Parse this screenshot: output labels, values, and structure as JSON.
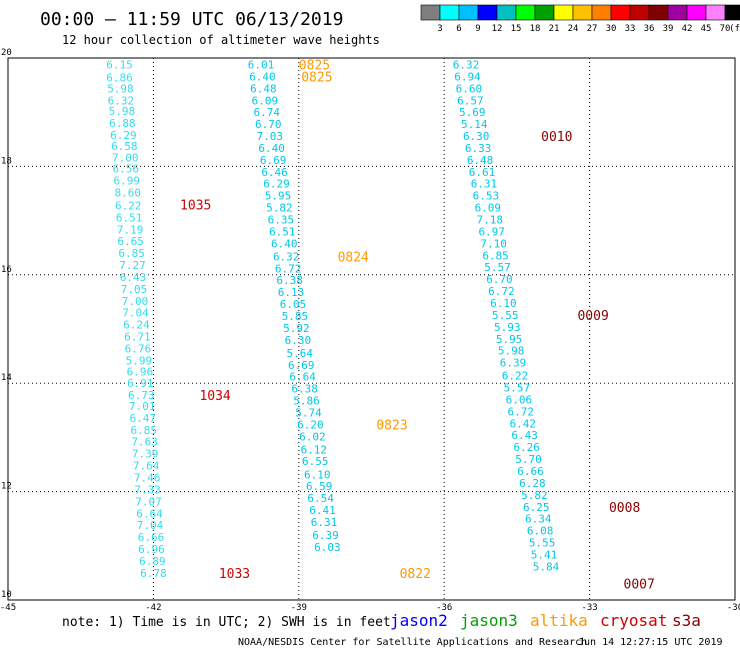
{
  "title": "00:00 – 11:59 UTC 06/13/2019",
  "subtitle": "12 hour collection of altimeter wave heights",
  "color_scale": {
    "colors": [
      "#7f7f7f",
      "#00ffff",
      "#00bfff",
      "#0000ff",
      "#00c0c0",
      "#00ff00",
      "#00a000",
      "#ffff00",
      "#ffc000",
      "#ff8000",
      "#ff0000",
      "#c00000",
      "#800000",
      "#a000a0",
      "#ff00ff",
      "#ff80ff",
      "#000000"
    ],
    "labels": [
      "3",
      "6",
      "9",
      "12",
      "15",
      "18",
      "21",
      "24",
      "27",
      "30",
      "33",
      "36",
      "39",
      "42",
      "45",
      "70",
      "(ft)"
    ]
  },
  "map": {
    "lon_range": [
      -45,
      -30
    ],
    "lat_range": [
      10,
      20
    ],
    "lon_ticks": [
      "-45",
      "-42",
      "-39",
      "-36",
      "-33",
      "-30"
    ],
    "lat_ticks": [
      "20",
      "18",
      "16",
      "14",
      "12",
      "10"
    ],
    "grid": true
  },
  "satellite_colors": {
    "jason2": "#0000ff",
    "jason3": "#00a000",
    "altika": "#ff9900",
    "cryosat": "#cc0000",
    "s3a": "#8b0000",
    "cyan": "#00c8e8",
    "light": "#33ddee"
  },
  "tracks": [
    {
      "color_key": "light",
      "points": [
        [
          -42.7,
          19.88,
          "6.15"
        ],
        [
          -42.7,
          19.64,
          "6.86"
        ],
        [
          -42.68,
          19.44,
          "5.98"
        ],
        [
          -42.67,
          19.22,
          "6.32"
        ],
        [
          -42.65,
          19.02,
          "5.98"
        ],
        [
          -42.64,
          18.8,
          "6.88"
        ],
        [
          -42.62,
          18.58,
          "6.29"
        ],
        [
          -42.6,
          18.38,
          "6.58"
        ],
        [
          -42.58,
          18.16,
          "7.00"
        ],
        [
          -42.57,
          17.96,
          "6.56"
        ],
        [
          -42.55,
          17.74,
          "6.99"
        ],
        [
          -42.53,
          17.52,
          "8.60"
        ],
        [
          -42.52,
          17.28,
          "6.22"
        ],
        [
          -42.5,
          17.06,
          "6.51"
        ],
        [
          -42.48,
          16.84,
          "7.19"
        ],
        [
          -42.47,
          16.62,
          "6.65"
        ],
        [
          -42.45,
          16.4,
          "6.85"
        ],
        [
          -42.43,
          16.18,
          "7.27"
        ],
        [
          -42.42,
          15.96,
          "6.43"
        ],
        [
          -42.4,
          15.74,
          "7.05"
        ],
        [
          -42.38,
          15.52,
          "7.00"
        ],
        [
          -42.37,
          15.3,
          "7.04"
        ],
        [
          -42.35,
          15.08,
          "6.24"
        ],
        [
          -42.33,
          14.86,
          "6.71"
        ],
        [
          -42.32,
          14.64,
          "6.76"
        ],
        [
          -42.3,
          14.42,
          "5.99"
        ],
        [
          -42.28,
          14.22,
          "6.96"
        ],
        [
          -42.27,
          14.0,
          "6.91"
        ],
        [
          -42.25,
          13.78,
          "6.73"
        ],
        [
          -42.23,
          13.58,
          "7.01"
        ],
        [
          -42.22,
          13.36,
          "6.47"
        ],
        [
          -42.2,
          13.14,
          "6.85"
        ],
        [
          -42.18,
          12.92,
          "7.63"
        ],
        [
          -42.17,
          12.7,
          "7.39"
        ],
        [
          -42.15,
          12.48,
          "7.64"
        ],
        [
          -42.13,
          12.26,
          "7.46"
        ],
        [
          -42.12,
          12.04,
          "7.33"
        ],
        [
          -42.1,
          11.82,
          "7.07"
        ],
        [
          -42.08,
          11.6,
          "6.64"
        ],
        [
          -42.07,
          11.38,
          "7.04"
        ],
        [
          -42.05,
          11.16,
          "6.66"
        ],
        [
          -42.04,
          10.94,
          "6.96"
        ],
        [
          -42.02,
          10.72,
          "6.89"
        ],
        [
          -42.0,
          10.5,
          "6.78"
        ]
      ]
    },
    {
      "color_key": "cyan",
      "points": [
        [
          -39.78,
          19.88,
          "6.01"
        ],
        [
          -39.75,
          19.66,
          "6.40"
        ],
        [
          -39.73,
          19.44,
          "6.48"
        ],
        [
          -39.7,
          19.22,
          "6.09"
        ],
        [
          -39.66,
          19.0,
          "6.74"
        ],
        [
          -39.63,
          18.78,
          "6.70"
        ],
        [
          -39.6,
          18.56,
          "7.03"
        ],
        [
          -39.56,
          18.34,
          "6.40"
        ],
        [
          -39.53,
          18.12,
          "6.69"
        ],
        [
          -39.5,
          17.9,
          "6.46"
        ],
        [
          -39.46,
          17.68,
          "6.29"
        ],
        [
          -39.43,
          17.46,
          "5.95"
        ],
        [
          -39.4,
          17.24,
          "5.82"
        ],
        [
          -39.37,
          17.02,
          "6.35"
        ],
        [
          -39.34,
          16.8,
          "6.51"
        ],
        [
          -39.3,
          16.58,
          "6.40"
        ],
        [
          -39.26,
          16.34,
          "6.32"
        ],
        [
          -39.22,
          16.12,
          "6.72"
        ],
        [
          -39.19,
          15.9,
          "6.38"
        ],
        [
          -39.16,
          15.68,
          "6.13"
        ],
        [
          -39.12,
          15.46,
          "6.05"
        ],
        [
          -39.08,
          15.24,
          "5.85"
        ],
        [
          -39.05,
          15.02,
          "5.92"
        ],
        [
          -39.02,
          14.8,
          "6.30"
        ],
        [
          -38.98,
          14.56,
          "5.64"
        ],
        [
          -38.95,
          14.34,
          "6.69"
        ],
        [
          -38.92,
          14.12,
          "6.64"
        ],
        [
          -38.88,
          13.9,
          "6.38"
        ],
        [
          -38.84,
          13.68,
          "5.86"
        ],
        [
          -38.8,
          13.46,
          "5.74"
        ],
        [
          -38.76,
          13.24,
          "6.20"
        ],
        [
          -38.72,
          13.02,
          "6.02"
        ],
        [
          -38.69,
          12.78,
          "6.12"
        ],
        [
          -38.66,
          12.56,
          "6.55"
        ],
        [
          -38.62,
          12.32,
          "6.10"
        ],
        [
          -38.58,
          12.1,
          "6.59"
        ],
        [
          -38.55,
          11.88,
          "6.54"
        ],
        [
          -38.51,
          11.66,
          "6.41"
        ],
        [
          -38.48,
          11.44,
          "6.31"
        ],
        [
          -38.45,
          11.2,
          "6.39"
        ],
        [
          -38.41,
          10.98,
          "6.03"
        ]
      ]
    },
    {
      "color_key": "cyan",
      "points": [
        [
          -35.55,
          19.88,
          "6.32"
        ],
        [
          -35.52,
          19.66,
          "6.94"
        ],
        [
          -35.49,
          19.44,
          "6.60"
        ],
        [
          -35.46,
          19.22,
          "6.57"
        ],
        [
          -35.42,
          19.0,
          "5.69"
        ],
        [
          -35.38,
          18.78,
          "5.14"
        ],
        [
          -35.34,
          18.56,
          "6.30"
        ],
        [
          -35.3,
          18.34,
          "6.33"
        ],
        [
          -35.26,
          18.12,
          "6.48"
        ],
        [
          -35.22,
          17.9,
          "6.61"
        ],
        [
          -35.18,
          17.68,
          "6.31"
        ],
        [
          -35.14,
          17.46,
          "6.53"
        ],
        [
          -35.1,
          17.24,
          "6.09"
        ],
        [
          -35.06,
          17.02,
          "7.18"
        ],
        [
          -35.02,
          16.8,
          "6.97"
        ],
        [
          -34.98,
          16.58,
          "7.10"
        ],
        [
          -34.94,
          16.36,
          "6.85"
        ],
        [
          -34.9,
          16.14,
          "5.57"
        ],
        [
          -34.86,
          15.92,
          "6.70"
        ],
        [
          -34.82,
          15.7,
          "6.72"
        ],
        [
          -34.78,
          15.48,
          "6.10"
        ],
        [
          -34.74,
          15.26,
          "5.55"
        ],
        [
          -34.7,
          15.04,
          "5.93"
        ],
        [
          -34.66,
          14.82,
          "5.95"
        ],
        [
          -34.62,
          14.6,
          "5.98"
        ],
        [
          -34.58,
          14.38,
          "6.39"
        ],
        [
          -34.54,
          14.14,
          "6.22"
        ],
        [
          -34.5,
          13.92,
          "5.57"
        ],
        [
          -34.46,
          13.7,
          "6.06"
        ],
        [
          -34.42,
          13.48,
          "6.72"
        ],
        [
          -34.38,
          13.26,
          "6.42"
        ],
        [
          -34.34,
          13.04,
          "6.43"
        ],
        [
          -34.3,
          12.82,
          "6.26"
        ],
        [
          -34.26,
          12.6,
          "5.70"
        ],
        [
          -34.22,
          12.38,
          "6.66"
        ],
        [
          -34.18,
          12.16,
          "6.28"
        ],
        [
          -34.14,
          11.94,
          "5.82"
        ],
        [
          -34.1,
          11.72,
          "6.25"
        ],
        [
          -34.06,
          11.5,
          "6.34"
        ],
        [
          -34.02,
          11.28,
          "6.08"
        ],
        [
          -33.98,
          11.06,
          "5.55"
        ],
        [
          -33.94,
          10.84,
          "5.41"
        ],
        [
          -33.9,
          10.62,
          "5.84"
        ]
      ]
    }
  ],
  "times": [
    {
      "lon": -39.0,
      "lat": 19.88,
      "text": "0825",
      "color_key": "altika"
    },
    {
      "lon": -38.95,
      "lat": 19.66,
      "text": "0825",
      "color_key": "altika"
    },
    {
      "lon": -41.45,
      "lat": 17.3,
      "text": "1035",
      "color_key": "cryosat"
    },
    {
      "lon": -38.2,
      "lat": 16.34,
      "text": "0824",
      "color_key": "altika"
    },
    {
      "lon": -41.05,
      "lat": 13.78,
      "text": "1034",
      "color_key": "cryosat"
    },
    {
      "lon": -37.4,
      "lat": 13.24,
      "text": "0823",
      "color_key": "altika"
    },
    {
      "lon": -40.65,
      "lat": 10.5,
      "text": "1033",
      "color_key": "cryosat"
    },
    {
      "lon": -36.92,
      "lat": 10.5,
      "text": "0822",
      "color_key": "altika"
    },
    {
      "lon": -34.0,
      "lat": 18.56,
      "text": "0010",
      "color_key": "s3a"
    },
    {
      "lon": -33.25,
      "lat": 15.26,
      "text": "0009",
      "color_key": "s3a"
    },
    {
      "lon": -32.6,
      "lat": 11.72,
      "text": "0008",
      "color_key": "s3a"
    },
    {
      "lon": -32.3,
      "lat": 10.3,
      "text": "0007",
      "color_key": "s3a"
    }
  ],
  "footer": {
    "note": "note: 1) Time is in UTC; 2) SWH is in feet",
    "satellites": [
      {
        "label": "jason2",
        "color_key": "jason2"
      },
      {
        "label": "jason3",
        "color_key": "jason3"
      },
      {
        "label": "altika",
        "color_key": "altika"
      },
      {
        "label": "cryosat",
        "color_key": "cryosat"
      },
      {
        "label": "s3a",
        "color_key": "s3a"
      }
    ],
    "credit": "NOAA/NESDIS Center for Satellite Applications and Research",
    "timestamp": "Jun 14 12:27:15 UTC 2019"
  }
}
